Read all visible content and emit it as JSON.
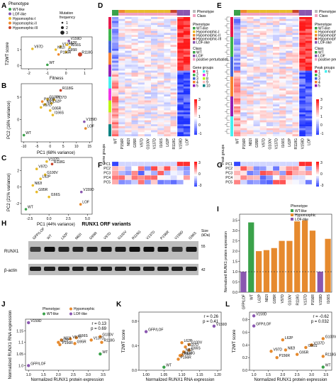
{
  "panel_labels": [
    "A",
    "B",
    "C",
    "D",
    "E",
    "F",
    "G",
    "H",
    "I",
    "J",
    "K",
    "L"
  ],
  "legend_A": {
    "title": "Phenotype",
    "items": [
      {
        "label": "WT-like",
        "color": "#3aa24a"
      },
      {
        "label": "LOF-like",
        "color": "#8a57b0"
      },
      {
        "label": "Hypomorphic-I",
        "color": "#e8bb2a"
      },
      {
        "label": "Hypomorphic-II",
        "color": "#f08a2c"
      },
      {
        "label": "Hypomorphic-III",
        "color": "#c9432a"
      }
    ],
    "size_title": "Mutation frequency",
    "size_items": [
      "1",
      "2",
      "3"
    ]
  },
  "variant_colors": {
    "WT": "#3aa24a",
    "GFP/LOF": "#8a57b0",
    "V159D": "#8a57b0",
    "L62P": "#e8bb2a",
    "N82I": "#e8bb2a",
    "G95R": "#e8bb2a",
    "V97D": "#e8bb2a",
    "G100V": "#e8bb2a",
    "V137D": "#e8bb2a",
    "I166S": "#e8bb2a",
    "P156R": "#f08a2c",
    "R118G": "#c9432a"
  },
  "panel_A": {
    "ylabel": "T2WT score",
    "xlabel": "Fitness",
    "xticks": [
      "-2",
      "-1",
      "0",
      "1"
    ],
    "yticks": [
      "0",
      "1"
    ],
    "points": [
      {
        "label": "V159D",
        "x": 0.15,
        "y": 1.55
      },
      {
        "label": "I166S",
        "x": 0.2,
        "y": 1.15
      },
      {
        "label": "V137D",
        "x": -0.3,
        "y": 1.2
      },
      {
        "label": "L62P",
        "x": 0.05,
        "y": 1.3
      },
      {
        "label": "V97D",
        "x": -1.8,
        "y": 1.05
      },
      {
        "label": "N82I",
        "x": -0.55,
        "y": 1.0
      },
      {
        "label": "G95R",
        "x": 0.0,
        "y": 0.85
      },
      {
        "label": "P156R",
        "x": -0.4,
        "y": 0.7
      },
      {
        "label": "R118G",
        "x": 0.75,
        "y": 0.7
      },
      {
        "label": "WT",
        "x": -1.0,
        "y": 0.05
      }
    ]
  },
  "panel_B": {
    "xlabel": "PC1 (68% variance)",
    "ylabel": "PC2 (16% variance)",
    "xticks": [
      "-10",
      "-5",
      "0",
      "5",
      "10",
      "15"
    ],
    "yticks": [
      "0",
      "5"
    ],
    "points": [
      {
        "label": "R118G",
        "x": 4,
        "y": 6.5
      },
      {
        "label": "G100V",
        "x": -1,
        "y": 4.5
      },
      {
        "label": "V137D",
        "x": 1.5,
        "y": 4.4
      },
      {
        "label": "P156R",
        "x": -3,
        "y": 4.0
      },
      {
        "label": "L62P",
        "x": 0.5,
        "y": 3.6
      },
      {
        "label": "N82I",
        "x": -2,
        "y": 3.4
      },
      {
        "label": "V97D",
        "x": -3.5,
        "y": 2.7
      },
      {
        "label": "G95R",
        "x": 0,
        "y": 2.0
      },
      {
        "label": "I166S",
        "x": 1,
        "y": 1.0
      },
      {
        "label": "V159D",
        "x": 13,
        "y": -0.5
      },
      {
        "label": "LOF",
        "x": 13.5,
        "y": -2.0
      },
      {
        "label": "WT",
        "x": -10,
        "y": -3.5
      }
    ]
  },
  "panel_C": {
    "xlabel": "PC1 (44% variance)",
    "ylabel": "PC2 (21% variance)",
    "xticks": [
      "-2.5",
      "0.0",
      "2.5",
      "5.0"
    ],
    "yticks": [
      "-2",
      "0",
      "2"
    ],
    "points": [
      {
        "label": "V137D",
        "x": -0.3,
        "y": 3.1
      },
      {
        "label": "R118G",
        "x": 0.4,
        "y": 2.8
      },
      {
        "label": "V97D",
        "x": -1.6,
        "y": 2.2
      },
      {
        "label": "G100V",
        "x": -0.5,
        "y": 1.5
      },
      {
        "label": "L62P",
        "x": -1.1,
        "y": 1.0
      },
      {
        "label": "N82I",
        "x": -2.1,
        "y": 0.2
      },
      {
        "label": "G95R",
        "x": -1.6,
        "y": -0.6
      },
      {
        "label": "I166S",
        "x": 0.0,
        "y": -1.2
      },
      {
        "label": "V159D",
        "x": 4.2,
        "y": -0.6
      },
      {
        "label": "LOF",
        "x": 4.1,
        "y": -2.1
      },
      {
        "label": "WT",
        "x": -3.0,
        "y": -2.7
      }
    ]
  },
  "heatmap_columns": [
    "WT",
    "P156R",
    "N82I",
    "G95R",
    "V97D",
    "G100V",
    "V137D",
    "I166S",
    "L62P",
    "R118G",
    "V159D",
    "LOF"
  ],
  "panel_D": {
    "legend_phenotype_title": "Phenotype",
    "legend_class_title": "Class",
    "phenotype_items": [
      "WT-like",
      "Hypomorphic-I",
      "Hypomorphic-II",
      "Hypomorphic-III",
      "LOF-like"
    ],
    "class_items": [
      "WT",
      "LOF",
      "positive perturbation"
    ],
    "gene_groups_title": "Gene groups",
    "gene_groups": [
      "1",
      "2",
      "3",
      "4",
      "5",
      "6",
      "7",
      "8",
      "9",
      "10"
    ],
    "side_label": "Gene groups",
    "colorbar": [
      "3",
      "2",
      "1",
      "0",
      "-1"
    ]
  },
  "panel_E": {
    "legend_phenotype_title": "Phenotype",
    "legend_class_title": "Class",
    "phenotype_items": [
      "WT-like",
      "Hypomorphic-I",
      "Hypomorphic-II",
      "Hypomorphic-III",
      "LOF-like"
    ],
    "class_items": [
      "WT",
      "LOF",
      "positive perturbation"
    ],
    "peak_groups_title": "Peak groups",
    "peak_groups": [
      "1",
      "2",
      "3",
      "4",
      "5",
      "6"
    ],
    "side_label": "Peak groups",
    "colorbar": [
      "3",
      "2",
      "1",
      "0",
      "-1"
    ]
  },
  "panel_F": {
    "rows": [
      "PC1",
      "PC2",
      "PC3",
      "PC4",
      "PC5"
    ],
    "colorbar": [
      "3",
      "0",
      "-3"
    ]
  },
  "panel_G": {
    "rows": [
      "PC1",
      "PC2",
      "PC3",
      "PC4",
      "PC5"
    ],
    "colorbar": [
      "3",
      "0",
      "-3"
    ]
  },
  "panel_H": {
    "title": "RUNX1 ORF variants",
    "lanes": [
      "GFP/LOF",
      "WT",
      "L62P",
      "N82I",
      "G95R",
      "V97D",
      "G100V",
      "R118G",
      "V137D",
      "P156R",
      "V159D",
      "I166S"
    ],
    "rows": [
      "RUNX1",
      "β-actin"
    ],
    "size_title": "Size (kDa)",
    "sizes": [
      "55",
      "42"
    ]
  },
  "panel_I": {
    "ylabel": "Normalized RUNX1 protein expression",
    "yticks": [
      "0.0",
      "0.5",
      "1.0",
      "1.5",
      "2.0",
      "2.5",
      "3.0",
      "3.5"
    ],
    "legend_title": "Phenotype",
    "legend_items": [
      "WT-like",
      "Hypomorphic",
      "LOF-like"
    ],
    "chart_data": {
      "type": "bar",
      "categories": [
        "GFP/LOF",
        "WT",
        "L62P",
        "N82I",
        "G95R",
        "V97D",
        "G100V",
        "R118G",
        "V137D",
        "P156R",
        "V159D",
        "I166S"
      ],
      "values": [
        1.0,
        3.4,
        2.0,
        2.05,
        2.15,
        2.5,
        2.5,
        3.45,
        3.5,
        3.0,
        1.0,
        2.6
      ],
      "colors": [
        "#8a57b0",
        "#3aa24a",
        "#e68a2e",
        "#e68a2e",
        "#e68a2e",
        "#e68a2e",
        "#e68a2e",
        "#e68a2e",
        "#e68a2e",
        "#e68a2e",
        "#8a57b0",
        "#e68a2e"
      ],
      "ylim": [
        0,
        3.8
      ]
    }
  },
  "legend_J": {
    "title": "Phenotype:",
    "items": [
      {
        "label": "WT-like",
        "color": "#3aa24a"
      },
      {
        "label": "Hypomorphic",
        "color": "#e68a2e"
      },
      {
        "label": "LOF-like",
        "color": "#8a57b0"
      }
    ]
  },
  "panel_J": {
    "xlabel": "Normalized RUNX1 protein expression",
    "ylabel": "Normalized RUNX1 RNA expression",
    "stats": [
      "r = 0.13",
      "p = 0.69"
    ],
    "xticks": [
      "1.0",
      "1.5",
      "2.0",
      "2.5",
      "3.0",
      "3.5"
    ],
    "yticks": [
      "1.0",
      "1.05",
      "1.1",
      "1.15"
    ],
    "chart_data": {
      "type": "scatter",
      "xlim": [
        0.9,
        3.7
      ],
      "ylim": [
        0.98,
        1.2
      ],
      "points": [
        {
          "label": "V159D",
          "x": 1.0,
          "y": 1.185,
          "color": "#8a57b0"
        },
        {
          "label": "G100V",
          "x": 3.4,
          "y": 1.125,
          "color": "#e68a2e"
        },
        {
          "label": "I166S",
          "x": 2.6,
          "y": 1.12,
          "color": "#e68a2e"
        },
        {
          "label": "V97D",
          "x": 2.4,
          "y": 1.115,
          "color": "#e68a2e"
        },
        {
          "label": "N82I",
          "x": 2.1,
          "y": 1.11,
          "color": "#e68a2e"
        },
        {
          "label": "V137D",
          "x": 3.1,
          "y": 1.11,
          "color": "#e68a2e"
        },
        {
          "label": "R118G",
          "x": 3.45,
          "y": 1.1,
          "color": "#e68a2e"
        },
        {
          "label": "L62P",
          "x": 2.0,
          "y": 1.1,
          "color": "#e68a2e"
        },
        {
          "label": "G95R",
          "x": 2.55,
          "y": 1.095,
          "color": "#e68a2e"
        },
        {
          "label": "P156R",
          "x": 2.05,
          "y": 1.09,
          "color": "#e68a2e"
        },
        {
          "label": "WT",
          "x": 3.4,
          "y": 1.05,
          "color": "#3aa24a"
        },
        {
          "label": "GFP/LOF",
          "x": 1.0,
          "y": 1.0,
          "color": "#8a57b0"
        }
      ]
    }
  },
  "panel_K": {
    "xlabel": "Normalized RUNX1 RNA expression",
    "ylabel": "T2WT score",
    "stats": [
      "r = 0.26",
      "p = 0.41"
    ],
    "xticks": [
      "1.00",
      "1.05",
      "1.10",
      "1.15",
      "1.20"
    ],
    "yticks": [
      "0.0",
      "0.4",
      "0.8"
    ],
    "chart_data": {
      "type": "scatter",
      "xlim": [
        0.98,
        1.21
      ],
      "ylim": [
        0.0,
        0.95
      ],
      "points": [
        {
          "label": "V159D",
          "x": 1.19,
          "y": 0.72,
          "color": "#8a57b0"
        },
        {
          "label": "GFP/LOF",
          "x": 1.0,
          "y": 0.63,
          "color": "#8a57b0"
        },
        {
          "label": "L62P",
          "x": 1.1,
          "y": 0.45,
          "color": "#e68a2e"
        },
        {
          "label": "G100V",
          "x": 1.12,
          "y": 0.42,
          "color": "#e68a2e"
        },
        {
          "label": "V137D",
          "x": 1.11,
          "y": 0.38,
          "color": "#e68a2e"
        },
        {
          "label": "I166S",
          "x": 1.12,
          "y": 0.33,
          "color": "#e68a2e"
        },
        {
          "label": "N82I",
          "x": 1.105,
          "y": 0.3,
          "color": "#e68a2e"
        },
        {
          "label": "R118G",
          "x": 1.1,
          "y": 0.25,
          "color": "#e68a2e"
        },
        {
          "label": "G95R",
          "x": 1.095,
          "y": 0.24,
          "color": "#e68a2e"
        },
        {
          "label": "P156R",
          "x": 1.09,
          "y": 0.18,
          "color": "#e68a2e"
        },
        {
          "label": "WT",
          "x": 1.05,
          "y": 0.05,
          "color": "#3aa24a"
        }
      ]
    }
  },
  "panel_L": {
    "xlabel": "Normalized RUNX1 protein expression",
    "ylabel": "T2WT score",
    "stats": [
      "r = -0.62",
      "p = 0.032"
    ],
    "xticks": [
      "1.0",
      "1.5",
      "2.0",
      "2.5",
      "3.0",
      "3.5"
    ],
    "yticks": [
      "0.0",
      "0.2",
      "0.4",
      "0.6",
      "0.8"
    ],
    "chart_data": {
      "type": "scatter",
      "xlim": [
        0.85,
        3.7
      ],
      "ylim": [
        0.0,
        0.92
      ],
      "points": [
        {
          "label": "V159D",
          "x": 1.0,
          "y": 0.86,
          "color": "#8a57b0"
        },
        {
          "label": "GFP/LOF",
          "x": 1.0,
          "y": 0.7,
          "color": "#8a57b0"
        },
        {
          "label": "G100V",
          "x": 3.4,
          "y": 0.5,
          "color": "#e68a2e"
        },
        {
          "label": "L62P",
          "x": 2.0,
          "y": 0.48,
          "color": "#e68a2e"
        },
        {
          "label": "V137D",
          "x": 3.0,
          "y": 0.4,
          "color": "#e68a2e"
        },
        {
          "label": "I166S",
          "x": 2.8,
          "y": 0.36,
          "color": "#e68a2e"
        },
        {
          "label": "N82I",
          "x": 2.1,
          "y": 0.32,
          "color": "#e68a2e"
        },
        {
          "label": "V97D",
          "x": 1.6,
          "y": 0.3,
          "color": "#e68a2e"
        },
        {
          "label": "G95R",
          "x": 2.5,
          "y": 0.25,
          "color": "#e68a2e"
        },
        {
          "label": "R118G",
          "x": 3.4,
          "y": 0.22,
          "color": "#e68a2e"
        },
        {
          "label": "P156R",
          "x": 1.8,
          "y": 0.2,
          "color": "#e68a2e"
        },
        {
          "label": "WT",
          "x": 3.4,
          "y": 0.05,
          "color": "#3aa24a"
        }
      ]
    }
  }
}
